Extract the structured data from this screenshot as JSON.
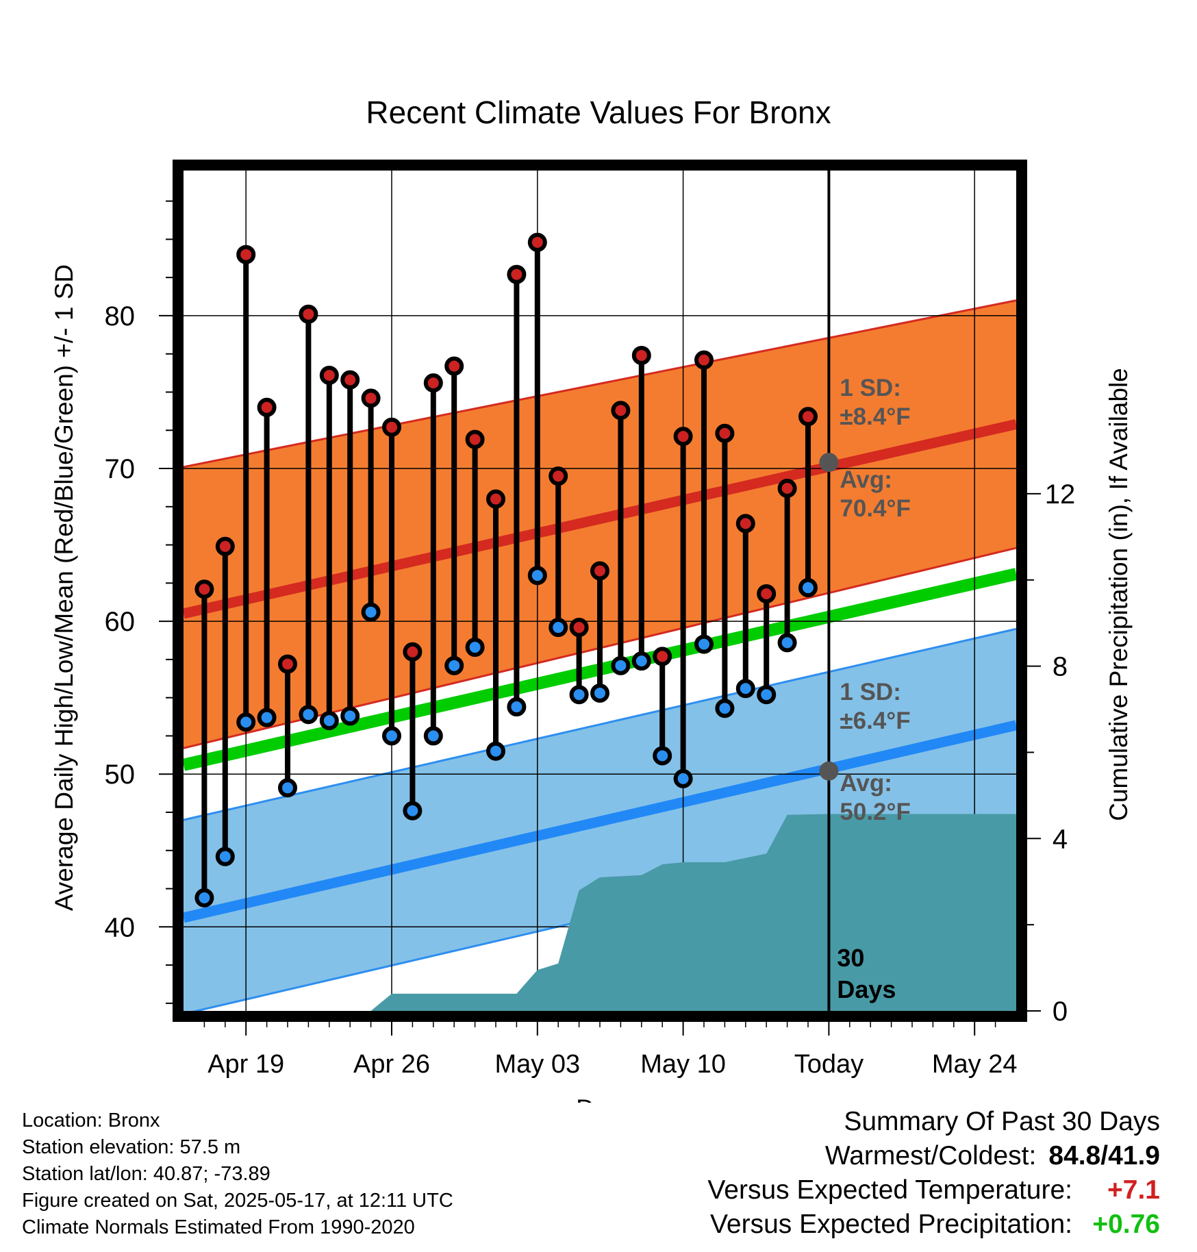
{
  "chart_data": {
    "type": "line",
    "title": "Recent Climate Values For Bronx",
    "xlabel": "Day",
    "ylabel": "Average Daily High/Low/Mean (Red/Blue/Green) +/- 1 SD",
    "y2label": "Cumulative Precipitation (in), If Available",
    "ylim": [
      34.5,
      89.5
    ],
    "y2lim": [
      0,
      19.5
    ],
    "yticks": [
      40,
      50,
      60,
      70,
      80
    ],
    "y2ticks": [
      0,
      4,
      8,
      12
    ],
    "xlim": [
      "2025-04-16",
      "2025-05-26"
    ],
    "xticks": [
      {
        "date": "2025-04-19",
        "label": "Apr 19"
      },
      {
        "date": "2025-04-26",
        "label": "Apr 26"
      },
      {
        "date": "2025-05-03",
        "label": "May 03"
      },
      {
        "date": "2025-05-10",
        "label": "May 10"
      },
      {
        "date": "2025-05-17",
        "label": "Today"
      },
      {
        "date": "2025-05-24",
        "label": "May 24"
      }
    ],
    "grid": true,
    "today": "2025-05-17",
    "today_annotation": [
      "30",
      "Days"
    ],
    "normals": {
      "dates": [
        "2025-04-16",
        "2025-05-26"
      ],
      "high_mean": [
        60.5,
        72.9
      ],
      "high_sd_upper": [
        70.1,
        81.0
      ],
      "high_sd_lower": [
        51.7,
        64.8
      ],
      "low_mean": [
        40.6,
        53.2
      ],
      "low_sd_upper": [
        47.0,
        59.5
      ],
      "low_sd_lower": [
        34.3,
        47.0
      ],
      "mean": [
        50.6,
        63.1
      ]
    },
    "annotations": {
      "high_sd": [
        "1 SD:",
        "±8.4°F"
      ],
      "high_avg": [
        "Avg:",
        "70.4°F"
      ],
      "high_avg_value": 70.4,
      "low_sd": [
        "1 SD:",
        "±6.4°F"
      ],
      "low_avg": [
        "Avg:",
        "50.2°F"
      ],
      "low_avg_value": 50.2
    },
    "series": [
      {
        "name": "High",
        "color": "#cc2222",
        "x": [
          "2025-04-17",
          "2025-04-18",
          "2025-04-19",
          "2025-04-20",
          "2025-04-21",
          "2025-04-22",
          "2025-04-23",
          "2025-04-24",
          "2025-04-25",
          "2025-04-26",
          "2025-04-27",
          "2025-04-28",
          "2025-04-29",
          "2025-04-30",
          "2025-05-01",
          "2025-05-02",
          "2025-05-03",
          "2025-05-04",
          "2025-05-05",
          "2025-05-06",
          "2025-05-07",
          "2025-05-08",
          "2025-05-09",
          "2025-05-10",
          "2025-05-11",
          "2025-05-12",
          "2025-05-13",
          "2025-05-14",
          "2025-05-15",
          "2025-05-16"
        ],
        "values": [
          62.1,
          64.9,
          84.0,
          74.0,
          57.2,
          80.1,
          76.1,
          75.8,
          74.6,
          72.7,
          58.0,
          75.6,
          76.7,
          71.9,
          68.0,
          82.7,
          84.8,
          69.5,
          59.6,
          63.3,
          73.8,
          77.4,
          57.7,
          72.1,
          77.1,
          72.3,
          66.4,
          61.8,
          68.7,
          73.4
        ]
      },
      {
        "name": "Low",
        "color": "#2a8ff0",
        "x": [
          "2025-04-17",
          "2025-04-18",
          "2025-04-19",
          "2025-04-20",
          "2025-04-21",
          "2025-04-22",
          "2025-04-23",
          "2025-04-24",
          "2025-04-25",
          "2025-04-26",
          "2025-04-27",
          "2025-04-28",
          "2025-04-29",
          "2025-04-30",
          "2025-05-01",
          "2025-05-02",
          "2025-05-03",
          "2025-05-04",
          "2025-05-05",
          "2025-05-06",
          "2025-05-07",
          "2025-05-08",
          "2025-05-09",
          "2025-05-10",
          "2025-05-11",
          "2025-05-12",
          "2025-05-13",
          "2025-05-14",
          "2025-05-15",
          "2025-05-16"
        ],
        "values": [
          41.9,
          44.6,
          53.4,
          53.7,
          49.1,
          53.9,
          53.5,
          53.8,
          60.6,
          52.5,
          47.6,
          52.5,
          57.1,
          58.3,
          51.5,
          54.4,
          63.0,
          59.6,
          55.2,
          55.3,
          57.1,
          57.4,
          51.2,
          49.7,
          58.5,
          54.3,
          55.6,
          55.2,
          58.6,
          62.2
        ]
      }
    ],
    "precip_cumulative": {
      "color": "#489aa6",
      "points": [
        [
          "2025-04-16",
          0.0
        ],
        [
          "2025-04-25",
          0.0
        ],
        [
          "2025-04-25",
          0.0
        ],
        [
          "2025-04-26",
          0.4
        ],
        [
          "2025-05-01",
          0.4
        ],
        [
          "2025-05-02",
          0.4
        ],
        [
          "2025-05-03",
          0.95
        ],
        [
          "2025-05-04",
          1.1
        ],
        [
          "2025-05-05",
          2.8
        ],
        [
          "2025-05-06",
          3.1
        ],
        [
          "2025-05-08",
          3.15
        ],
        [
          "2025-05-09",
          3.4
        ],
        [
          "2025-05-10",
          3.45
        ],
        [
          "2025-05-12",
          3.45
        ],
        [
          "2025-05-13",
          3.55
        ],
        [
          "2025-05-14",
          3.65
        ],
        [
          "2025-05-15",
          4.55
        ],
        [
          "2025-05-17",
          4.57
        ],
        [
          "2025-05-26",
          4.57
        ]
      ]
    }
  },
  "info": {
    "location": "Location: Bronx",
    "elevation": "Station elevation: 57.5 m",
    "latlon": "Station lat/lon: 40.87; -73.89",
    "created": "Figure created on Sat, 2025-05-17, at 12:11 UTC",
    "normals": "Climate Normals Estimated From 1990-2020"
  },
  "summary": {
    "title": "Summary Of Past 30 Days",
    "warm_cold_label": "Warmest/Coldest:",
    "warm_cold_value": "84.8/41.9",
    "temp_label": "Versus Expected Temperature:",
    "temp_value": "+7.1",
    "temp_color": "#d22020",
    "precip_label": "Versus Expected Precipitation:",
    "precip_value": "+0.76",
    "precip_color": "#10c010"
  }
}
